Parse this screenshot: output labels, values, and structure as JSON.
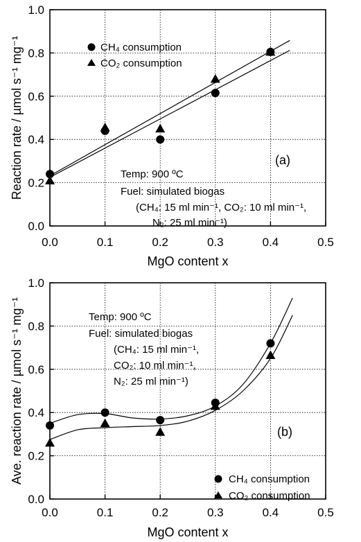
{
  "chart_data": [
    {
      "type": "scatter",
      "panel_label": "(a)",
      "xlabel": "MgO content x",
      "ylabel": "Reaction rate / µmol s⁻¹ mg⁻¹",
      "xlim": [
        0.0,
        0.5
      ],
      "ylim": [
        0.0,
        1.0
      ],
      "xticks": [
        "0.0",
        "0.1",
        "0.2",
        "0.3",
        "0.4",
        "0.5"
      ],
      "yticks": [
        "0.0",
        "0.2",
        "0.4",
        "0.6",
        "0.8",
        "1.0"
      ],
      "grid": true,
      "legend_position": "top-left",
      "series": [
        {
          "name": "CH₄ consumption",
          "marker": "circle",
          "x": [
            0.0,
            0.1,
            0.2,
            0.3,
            0.4
          ],
          "y": [
            0.24,
            0.44,
            0.4,
            0.615,
            0.805
          ],
          "fit": "linear",
          "fit_x": [
            0.0,
            0.435
          ],
          "fit_y": [
            0.232,
            0.858
          ]
        },
        {
          "name": "CO₂ consumption",
          "marker": "triangle",
          "x": [
            0.0,
            0.1,
            0.2,
            0.3,
            0.4
          ],
          "y": [
            0.21,
            0.455,
            0.45,
            0.68,
            0.805
          ],
          "fit": "linear",
          "fit_x": [
            0.0,
            0.435
          ],
          "fit_y": [
            0.225,
            0.812
          ]
        }
      ],
      "annotations": [
        "Temp: 900 ºC",
        "Fuel: simulated biogas",
        "(CH₄: 15 ml min⁻¹, CO₂: 10 ml min⁻¹,",
        "N₂: 25 ml min⁻¹)"
      ]
    },
    {
      "type": "scatter",
      "panel_label": "(b)",
      "xlabel": "MgO content x",
      "ylabel": "Ave. reaction rate / µmol s⁻¹ mg⁻¹",
      "xlim": [
        0.0,
        0.5
      ],
      "ylim": [
        0.0,
        1.0
      ],
      "xticks": [
        "0.0",
        "0.1",
        "0.2",
        "0.3",
        "0.4",
        "0.5"
      ],
      "yticks": [
        "0.0",
        "0.2",
        "0.4",
        "0.6",
        "0.8",
        "1.0"
      ],
      "grid": true,
      "legend_position": "bottom-right",
      "series": [
        {
          "name": "CH₄ consumption",
          "marker": "circle",
          "x": [
            0.0,
            0.1,
            0.2,
            0.3,
            0.4
          ],
          "y": [
            0.34,
            0.4,
            0.365,
            0.445,
            0.72
          ],
          "fit": "smooth",
          "fit_x": [
            0.0,
            0.05,
            0.1,
            0.15,
            0.2,
            0.25,
            0.3,
            0.35,
            0.4,
            0.44
          ],
          "fit_y": [
            0.35,
            0.39,
            0.395,
            0.375,
            0.37,
            0.385,
            0.43,
            0.53,
            0.72,
            0.93
          ]
        },
        {
          "name": "CO₂ consumption",
          "marker": "triangle",
          "x": [
            0.0,
            0.1,
            0.2,
            0.3,
            0.4
          ],
          "y": [
            0.26,
            0.35,
            0.31,
            0.43,
            0.665
          ],
          "fit": "smooth",
          "fit_x": [
            0.0,
            0.05,
            0.1,
            0.15,
            0.2,
            0.25,
            0.3,
            0.35,
            0.4,
            0.44
          ],
          "fit_y": [
            0.275,
            0.32,
            0.33,
            0.335,
            0.34,
            0.36,
            0.41,
            0.5,
            0.65,
            0.85
          ]
        }
      ],
      "annotations": [
        "Temp: 900 ºC",
        "Fuel: simulated biogas",
        "(CH₄: 15 ml min⁻¹,",
        "CO₂: 10 ml min⁻¹,",
        "N₂: 25 ml min⁻¹)"
      ]
    }
  ]
}
